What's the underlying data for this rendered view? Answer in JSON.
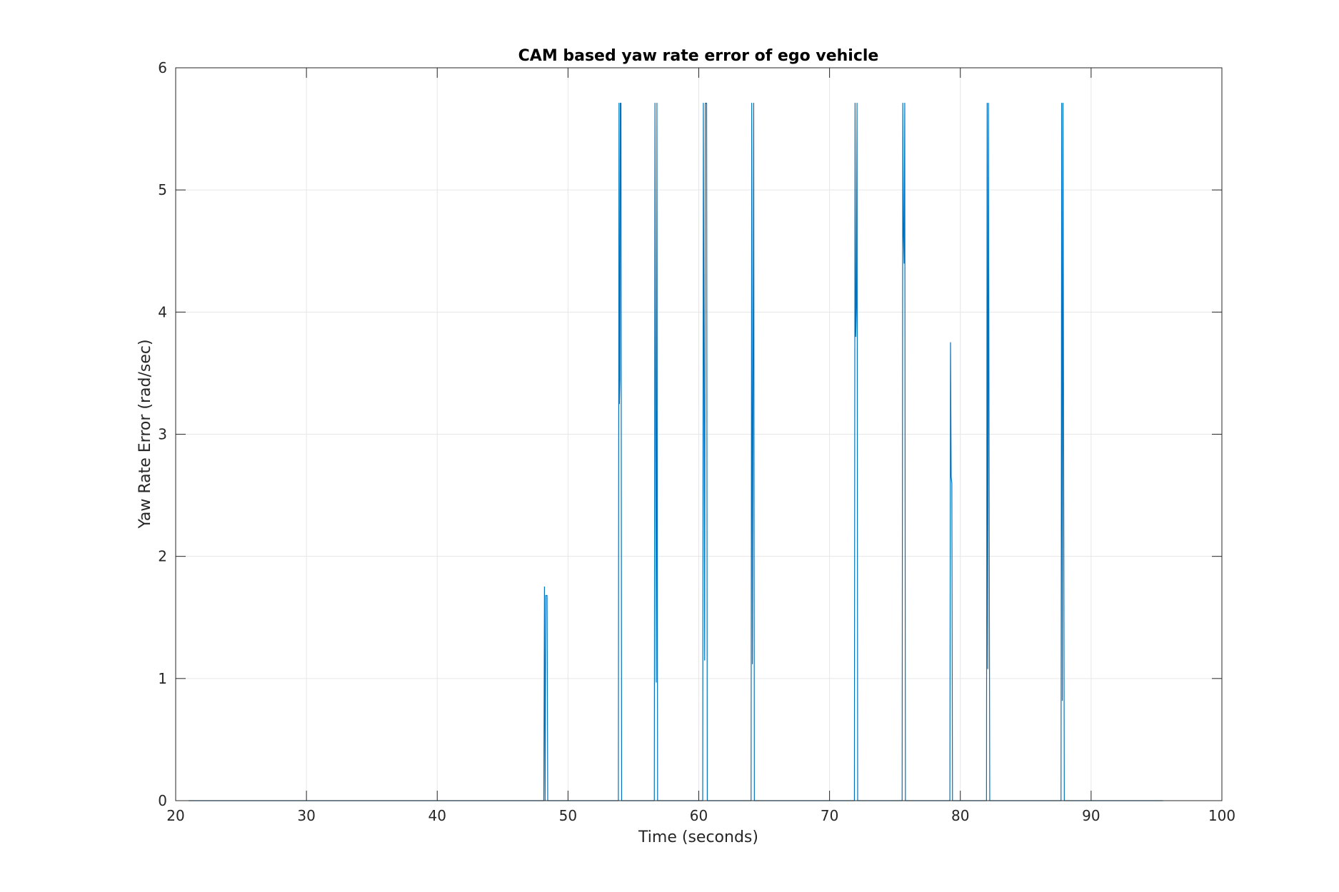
{
  "chart_data": {
    "type": "line",
    "title": "CAM based yaw rate error of ego vehicle",
    "xlabel": "Time (seconds)",
    "ylabel": "Yaw Rate Error (rad/sec)",
    "xlim": [
      20,
      100
    ],
    "ylim": [
      0,
      6
    ],
    "x_ticks": [
      "20",
      "30",
      "40",
      "50",
      "60",
      "70",
      "80",
      "90",
      "100"
    ],
    "y_ticks": [
      "0",
      "1",
      "2",
      "3",
      "4",
      "5",
      "6"
    ],
    "grid": true,
    "legend": "none",
    "colors": {
      "line": "#0072bd",
      "grid": "#e6e6e6",
      "axes": "#262626"
    },
    "series": [
      {
        "x": [
          21,
          48.15,
          48.2,
          48.25,
          48.3,
          48.4,
          48.45,
          48.5,
          53.85,
          53.9,
          53.93,
          53.97,
          54.0,
          54.05,
          54.1,
          56.6,
          56.65,
          56.75,
          56.8,
          56.85,
          60.3,
          60.35,
          60.45,
          60.5,
          60.6,
          60.65,
          64.0,
          64.05,
          64.1,
          64.2,
          64.25,
          71.9,
          71.95,
          72.0,
          72.05,
          72.1,
          72.15,
          75.55,
          75.6,
          75.65,
          75.7,
          75.75,
          75.8,
          79.2,
          79.25,
          79.3,
          79.35,
          79.4,
          79.45,
          82.0,
          82.05,
          82.1,
          82.15,
          82.25,
          87.7,
          87.75,
          87.8,
          87.85,
          87.95,
          95.5
        ],
        "y": [
          0,
          0,
          1.75,
          0,
          1.68,
          1.68,
          0,
          0,
          0,
          5.71,
          3.25,
          3.45,
          5.71,
          5.71,
          0,
          0,
          5.71,
          0.97,
          5.71,
          0,
          0,
          5.71,
          1.15,
          5.71,
          5.71,
          0,
          0,
          5.71,
          1.12,
          5.71,
          0,
          0,
          5.71,
          3.8,
          4.05,
          5.71,
          0,
          0,
          5.71,
          4.65,
          4.4,
          5.71,
          0,
          0,
          3.75,
          2.65,
          2.6,
          0,
          0,
          0,
          5.71,
          1.08,
          5.71,
          0,
          0,
          5.71,
          0.82,
          5.71,
          0,
          0
        ]
      }
    ]
  }
}
